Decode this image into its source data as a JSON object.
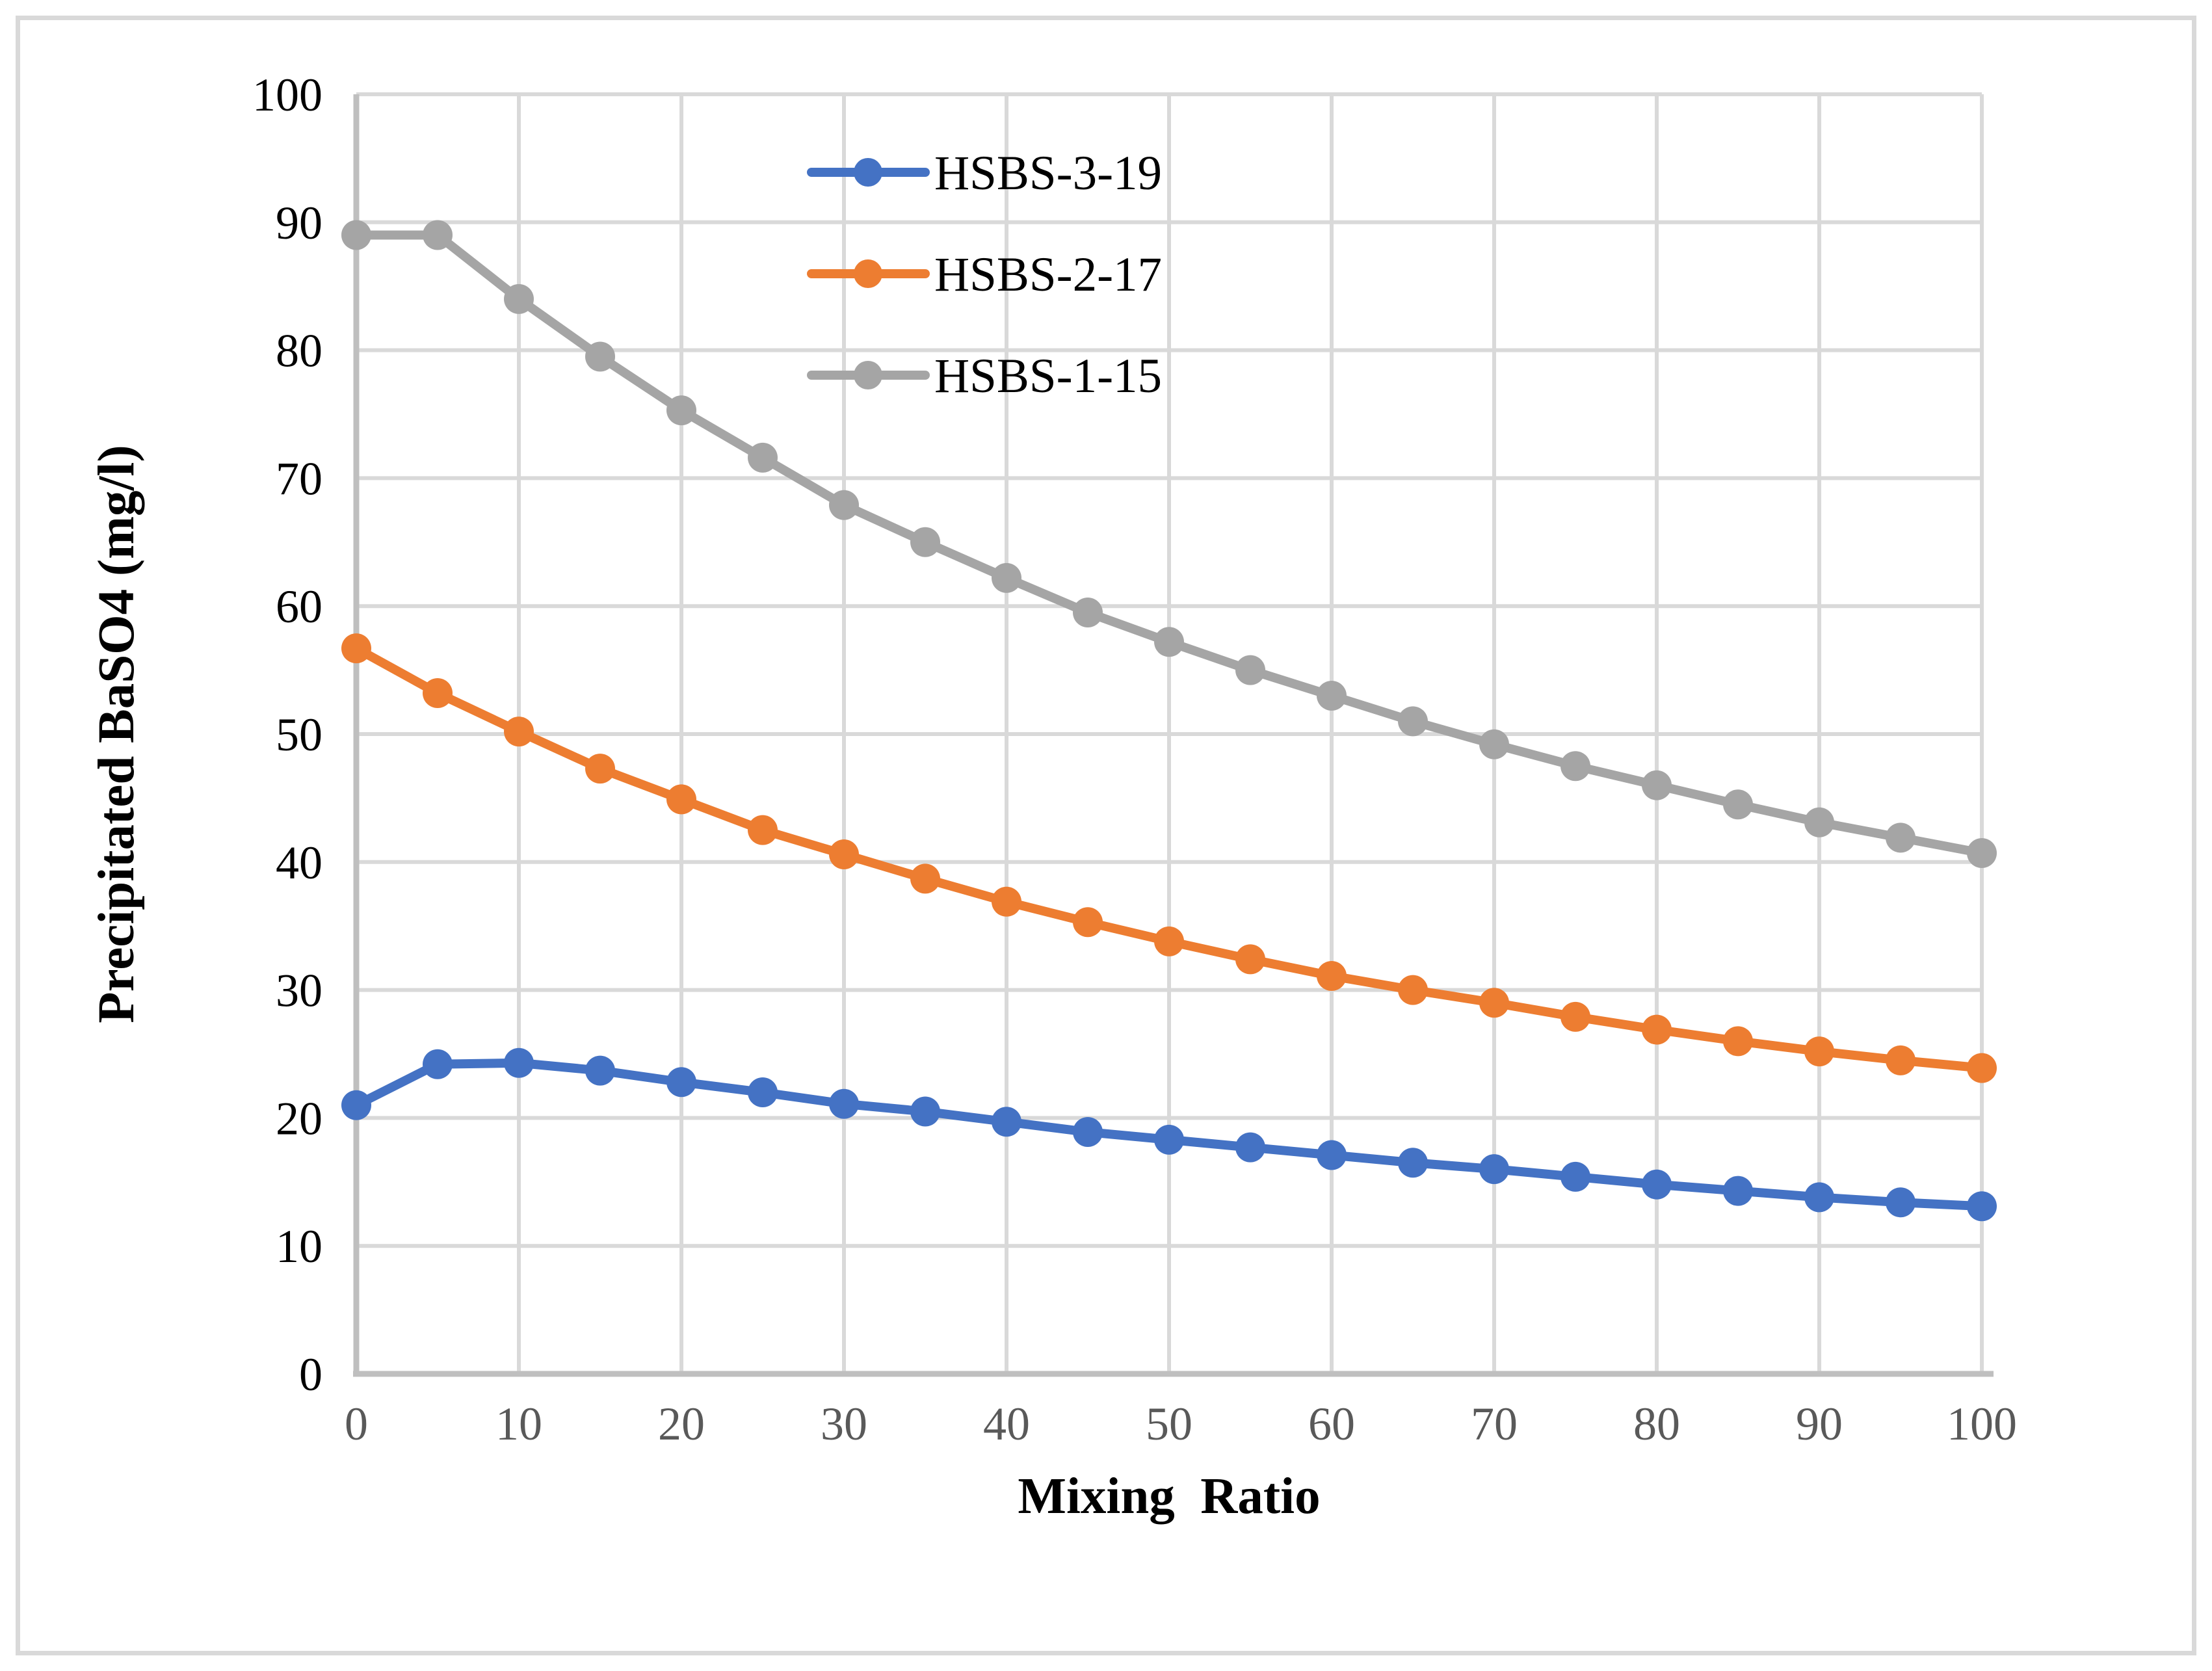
{
  "figure": {
    "background": "#ffffff",
    "border_color": "#d9d9d9"
  },
  "chart_data": {
    "type": "line",
    "title": "",
    "xlabel": "Mixing  Ratio",
    "ylabel": "Precipitated BaSO4 (mg/l)",
    "xlim": [
      0,
      100
    ],
    "ylim": [
      0,
      100
    ],
    "x_ticks": [
      0,
      10,
      20,
      30,
      40,
      50,
      60,
      70,
      80,
      90,
      100
    ],
    "y_ticks": [
      0,
      10,
      20,
      30,
      40,
      50,
      60,
      70,
      80,
      90,
      100
    ],
    "grid": true,
    "legend_position": "inside-top-left",
    "x": [
      0,
      5,
      10,
      15,
      20,
      25,
      30,
      35,
      40,
      45,
      50,
      55,
      60,
      65,
      70,
      75,
      80,
      85,
      90,
      95,
      100
    ],
    "series": [
      {
        "name": "HSBS-3-19",
        "color": "#4472C4",
        "values": [
          21.0,
          24.2,
          24.3,
          23.7,
          22.8,
          22.0,
          21.1,
          20.5,
          19.7,
          18.9,
          18.3,
          17.7,
          17.1,
          16.5,
          16.0,
          15.4,
          14.8,
          14.3,
          13.8,
          13.4,
          13.1
        ]
      },
      {
        "name": "HSBS-2-17",
        "color": "#ED7D31",
        "values": [
          56.7,
          53.2,
          50.2,
          47.3,
          44.9,
          42.5,
          40.6,
          38.7,
          36.9,
          35.3,
          33.8,
          32.4,
          31.1,
          30.0,
          29.0,
          27.9,
          26.9,
          26.0,
          25.2,
          24.5,
          23.9
        ]
      },
      {
        "name": "HSBS-1-15",
        "color": "#A5A5A5",
        "values": [
          89.0,
          89.0,
          84.0,
          79.5,
          75.3,
          71.6,
          67.9,
          65.0,
          62.2,
          59.5,
          57.2,
          55.0,
          53.0,
          51.0,
          49.2,
          47.5,
          46.0,
          44.5,
          43.1,
          41.9,
          40.7
        ]
      }
    ],
    "style": {
      "gridline_color": "#d9d9d9",
      "axis_line_color": "#bfbfbf",
      "x_tick_label_color": "#595959",
      "y_tick_label_color": "#000000",
      "line_width": 14,
      "marker_radius": 23
    }
  }
}
